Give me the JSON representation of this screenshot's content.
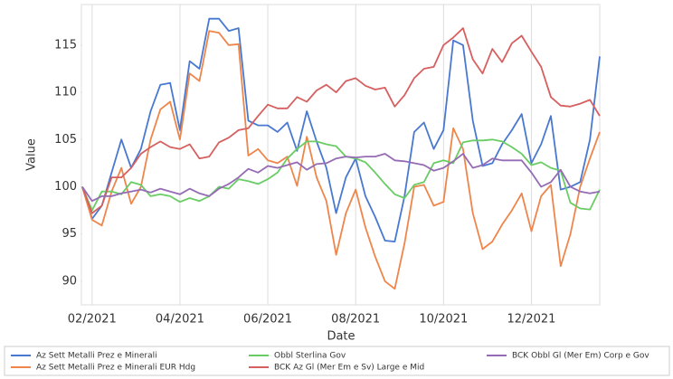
{
  "chart_data": {
    "type": "line",
    "x_label": "Date",
    "y_label": "Value",
    "categories": [
      null,
      "02/2021",
      null,
      null,
      null,
      null,
      null,
      null,
      null,
      null,
      "04/2021",
      null,
      null,
      null,
      null,
      null,
      null,
      null,
      null,
      "06/2021",
      null,
      null,
      null,
      null,
      null,
      null,
      null,
      null,
      "08/2021",
      null,
      null,
      null,
      null,
      null,
      null,
      null,
      null,
      "10/2021",
      null,
      null,
      null,
      null,
      null,
      null,
      null,
      null,
      "12/2021",
      null,
      null,
      null,
      null,
      null,
      null,
      null
    ],
    "series": [
      {
        "name": "Az Sett Metalli Prez e Minerali",
        "color": "#4878d0",
        "values": [
          100,
          96.6,
          98,
          101.5,
          105,
          102,
          104,
          108,
          110.8,
          111,
          106,
          113.3,
          112.5,
          117.8,
          117.8,
          116.5,
          116.8,
          107,
          106.5,
          106.5,
          105.8,
          106.8,
          103.8,
          108,
          104.8,
          102,
          97.2,
          101,
          103,
          99,
          96.8,
          94.3,
          94.2,
          99,
          105.8,
          106.8,
          104,
          106,
          115.5,
          115,
          107,
          102.2,
          102.5,
          104.5,
          106,
          107.7,
          102.5,
          104.5,
          107.5,
          99.7,
          100,
          100.5,
          105,
          113.8
        ]
      },
      {
        "name": "Az Sett Metalli Prez e Minerali EUR Hdg",
        "color": "#ee854a",
        "values": [
          100,
          96.5,
          95.9,
          99.5,
          102,
          98.2,
          100,
          105,
          108.2,
          109,
          105,
          112,
          111.2,
          116.5,
          116.3,
          115,
          115.1,
          103.3,
          104,
          102.8,
          102.5,
          103.2,
          100.1,
          105.3,
          101,
          98.5,
          92.8,
          97.2,
          99.7,
          95.7,
          92.6,
          90,
          89.2,
          94,
          100,
          100.2,
          98,
          98.4,
          106.2,
          104,
          97.2,
          93.4,
          94.2,
          96,
          97.5,
          99.3,
          95.3,
          99,
          100.2,
          91.6,
          95,
          100,
          103,
          105.8
        ]
      },
      {
        "name": "Obbl Sterlina Gov",
        "color": "#6acc64",
        "values": [
          100,
          97.5,
          99.5,
          99.5,
          99.2,
          100.5,
          100.2,
          99,
          99.2,
          99,
          98.4,
          98.8,
          98.5,
          99,
          100,
          99.8,
          100.8,
          100.6,
          100.3,
          100.8,
          101.5,
          103,
          104,
          104.8,
          104.8,
          104.5,
          104.3,
          103.2,
          103,
          102.6,
          101.5,
          100.3,
          99.2,
          98.8,
          100.2,
          100.5,
          102.5,
          102.8,
          102.5,
          104.7,
          104.9,
          104.9,
          105,
          104.8,
          104.2,
          103.5,
          102.3,
          102.6,
          102,
          101.7,
          98.3,
          97.7,
          97.6,
          99.7
        ]
      },
      {
        "name": "BCK Az Gl (Mer Em e Sv) Large e Mid",
        "color": "#d65f5f",
        "values": [
          100,
          97.2,
          98,
          101,
          101,
          102,
          103.5,
          104.2,
          104.8,
          104.2,
          104,
          104.5,
          103,
          103.2,
          104.7,
          105.2,
          106,
          106.2,
          107.5,
          108.7,
          108.3,
          108.3,
          109.5,
          109,
          110.2,
          110.8,
          110,
          111.2,
          111.5,
          110.7,
          110.3,
          110.5,
          108.5,
          109.7,
          111.5,
          112.5,
          112.7,
          115,
          115.8,
          116.8,
          113.5,
          112,
          114.6,
          113.2,
          115.2,
          116,
          114.3,
          112.7,
          109.5,
          108.6,
          108.5,
          108.8,
          109.2,
          107.5
        ]
      },
      {
        "name": "BCK Obbl Gl (Mer Em) Corp e Gov",
        "color": "#956cb4",
        "values": [
          100,
          98.5,
          99,
          99,
          99.3,
          99.5,
          99.7,
          99.4,
          99.8,
          99.5,
          99.2,
          99.8,
          99.3,
          99,
          99.8,
          100.3,
          101,
          101.9,
          101.5,
          102.2,
          102,
          102.3,
          102.6,
          101.8,
          102.4,
          102.5,
          103,
          103.2,
          103.1,
          103.2,
          103.2,
          103.5,
          102.8,
          102.7,
          102.5,
          102.3,
          101.7,
          102,
          102.7,
          103.5,
          102,
          102.3,
          103,
          102.8,
          102.8,
          102.8,
          101.5,
          100,
          100.5,
          101.8,
          100,
          99.5,
          99.3,
          99.5
        ]
      }
    ],
    "ylim": [
      87.5,
      119.3
    ],
    "yticks": [
      90,
      95,
      100,
      105,
      110,
      115
    ],
    "grid": "x",
    "legend": "bottom"
  }
}
